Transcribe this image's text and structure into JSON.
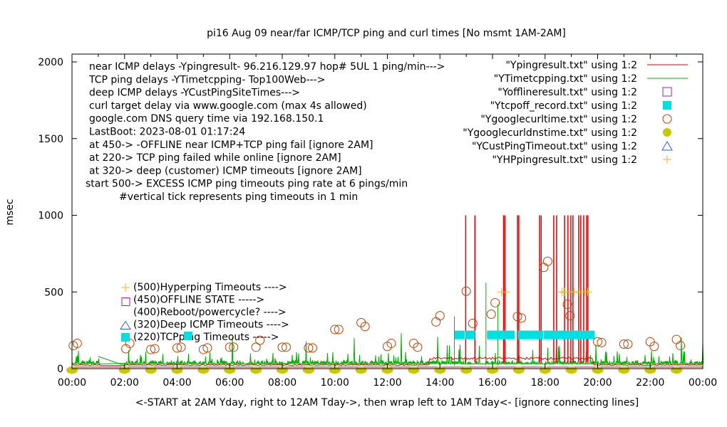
{
  "chart_data": {
    "type": "line",
    "title": "pi16 Aug 09  near/far ICMP/TCP ping and curl times [No msmt 1AM-2AM]",
    "xlabel": "<-START at 2AM Yday, right to 12AM Tday->, then wrap left to 1AM Tday<- [ignore connecting lines]",
    "ylabel": "msec",
    "xlim": [
      0,
      24
    ],
    "ylim": [
      0,
      2000
    ],
    "x_ticks": [
      "00:00",
      "02:00",
      "04:00",
      "06:00",
      "08:00",
      "10:00",
      "12:00",
      "14:00",
      "16:00",
      "18:00",
      "20:00",
      "22:00",
      "00:00"
    ],
    "y_ticks": [
      "0",
      "500",
      "1000",
      "1500",
      "2000"
    ],
    "grid": false,
    "legend_position": "top-right",
    "annotations": [
      "near ICMP delays -Ypingresult- 96.216.129.97 hop# 5UL 1 ping/min--->",
      "TCP ping delays -YTimetcpping- Top100Web--->",
      "deep ICMP delays -YCustPingSiteTimes--->",
      "curl target delay via www.google.com (max 4s allowed)",
      "google.com DNS query time via 192.168.150.1",
      "LastBoot: 2023-08-01 01:17:24",
      "at 450-> -OFFLINE near ICMP+TCP ping fail [ignore 2AM]",
      "at 220-> TCP ping failed while online [ignore 2AM]",
      "at 320-> deep (customer) ICMP timeouts [ignore 2AM]",
      "start 500-> EXCESS ICMP ping timeouts ping rate at 6 pings/min",
      "#vertical tick represents ping timeouts in 1 min"
    ],
    "key_labels": [
      {
        "label": "(500)Hyperping Timeouts ---->",
        "symbol": "plus",
        "color": "#f0b030"
      },
      {
        "label": "(450)OFFLINE STATE ----->",
        "symbol": "open-square",
        "color": "#a020c0"
      },
      {
        "label": "(400)Reboot/powercycle? ---->",
        "symbol": "none",
        "color": "#000000"
      },
      {
        "label": "(320)Deep ICMP Timeouts ---->",
        "symbol": "open-triangle",
        "color": "#3060d0"
      },
      {
        "label": "(220)TCPping Timeouts ----->",
        "symbol": "filled-square",
        "color": "#00e0e0"
      }
    ],
    "series": [
      {
        "name": "\"Ypingresult.txt\" using 1:2",
        "style": "line",
        "color": "#e00000",
        "baseline": 20,
        "baseline_after_14h": 60,
        "spikes_x": [
          14.98,
          15.33,
          16.42,
          16.47,
          16.95,
          17.0,
          17.79,
          17.85,
          18.33,
          18.44,
          18.74,
          18.87,
          18.98,
          19.06,
          19.28,
          19.36,
          19.47,
          19.58,
          19.63
        ],
        "spike_top": 1000
      },
      {
        "name": "\"YTimetcpping.txt\" using 1:2",
        "style": "line",
        "color": "#00b000",
        "baseline": 30,
        "typical_peak": 100
      },
      {
        "name": "\"Yofflineresult.txt\" using 1:2",
        "style": "open-square",
        "color": "#a020c0",
        "points": []
      },
      {
        "name": "\"Ytcpoff_record.txt\" using 1:2",
        "style": "filled-square",
        "color": "#00e0e0",
        "points": [
          [
            14.75,
            220
          ],
          [
            15.15,
            220
          ],
          [
            16.0,
            220
          ],
          [
            16.45,
            220
          ],
          [
            17.15,
            220
          ],
          [
            17.7,
            220
          ],
          [
            18.15,
            220
          ],
          [
            18.7,
            220
          ],
          [
            19.2,
            220
          ],
          [
            19.6,
            220
          ]
        ]
      },
      {
        "name": "\"Ygooglecurltime.txt\" using 1:2",
        "style": "open-circle",
        "color": "#c04000",
        "points": [
          [
            0.05,
            150
          ],
          [
            0.2,
            165
          ],
          [
            2.05,
            130
          ],
          [
            2.2,
            165
          ],
          [
            3.0,
            125
          ],
          [
            3.15,
            130
          ],
          [
            4.0,
            135
          ],
          [
            4.15,
            140
          ],
          [
            5.0,
            125
          ],
          [
            5.15,
            135
          ],
          [
            6.0,
            140
          ],
          [
            6.15,
            140
          ],
          [
            7.0,
            140
          ],
          [
            7.15,
            185
          ],
          [
            8.0,
            140
          ],
          [
            8.15,
            140
          ],
          [
            9.0,
            135
          ],
          [
            9.15,
            135
          ],
          [
            10.0,
            255
          ],
          [
            10.15,
            255
          ],
          [
            11.0,
            300
          ],
          [
            11.15,
            275
          ],
          [
            12.0,
            145
          ],
          [
            12.15,
            165
          ],
          [
            13.0,
            165
          ],
          [
            13.15,
            140
          ],
          [
            13.85,
            305
          ],
          [
            14.0,
            345
          ],
          [
            15.0,
            505
          ],
          [
            15.25,
            295
          ],
          [
            15.95,
            355
          ],
          [
            16.1,
            430
          ],
          [
            16.95,
            340
          ],
          [
            17.1,
            330
          ],
          [
            17.95,
            660
          ],
          [
            18.1,
            700
          ],
          [
            18.85,
            420
          ],
          [
            18.95,
            345
          ],
          [
            20.0,
            175
          ],
          [
            20.15,
            170
          ],
          [
            21.0,
            160
          ],
          [
            21.15,
            160
          ],
          [
            22.0,
            175
          ],
          [
            22.15,
            145
          ],
          [
            23.0,
            190
          ],
          [
            23.15,
            150
          ]
        ]
      },
      {
        "name": "\"Ygooglecurldnstime.txt\" using 1:2",
        "style": "filled-circle",
        "color": "#c8c800",
        "points": [
          [
            0,
            0
          ],
          [
            2,
            0
          ],
          [
            3,
            0
          ],
          [
            4,
            0
          ],
          [
            5,
            0
          ],
          [
            6,
            0
          ],
          [
            7,
            0
          ],
          [
            8,
            0
          ],
          [
            9,
            0
          ],
          [
            10,
            0
          ],
          [
            11,
            0
          ],
          [
            12,
            0
          ],
          [
            13,
            0
          ],
          [
            14,
            0
          ],
          [
            15,
            0
          ],
          [
            16,
            0
          ],
          [
            17,
            0
          ],
          [
            18,
            0
          ],
          [
            19,
            0
          ],
          [
            20,
            0
          ],
          [
            21,
            0
          ],
          [
            22,
            0
          ],
          [
            23,
            0
          ]
        ]
      },
      {
        "name": "\"YCustPingTimeout.txt\" using 1:2",
        "style": "open-triangle",
        "color": "#3060d0",
        "points": []
      },
      {
        "name": "\"YHPpingresult.txt\" using 1:2",
        "style": "plus",
        "color": "#f0b030",
        "points": [
          [
            16.35,
            500
          ],
          [
            16.5,
            500
          ],
          [
            18.65,
            500
          ],
          [
            18.75,
            500
          ],
          [
            18.95,
            500
          ],
          [
            19.1,
            500
          ],
          [
            19.3,
            500
          ],
          [
            19.5,
            500
          ],
          [
            19.62,
            500
          ]
        ]
      }
    ]
  }
}
